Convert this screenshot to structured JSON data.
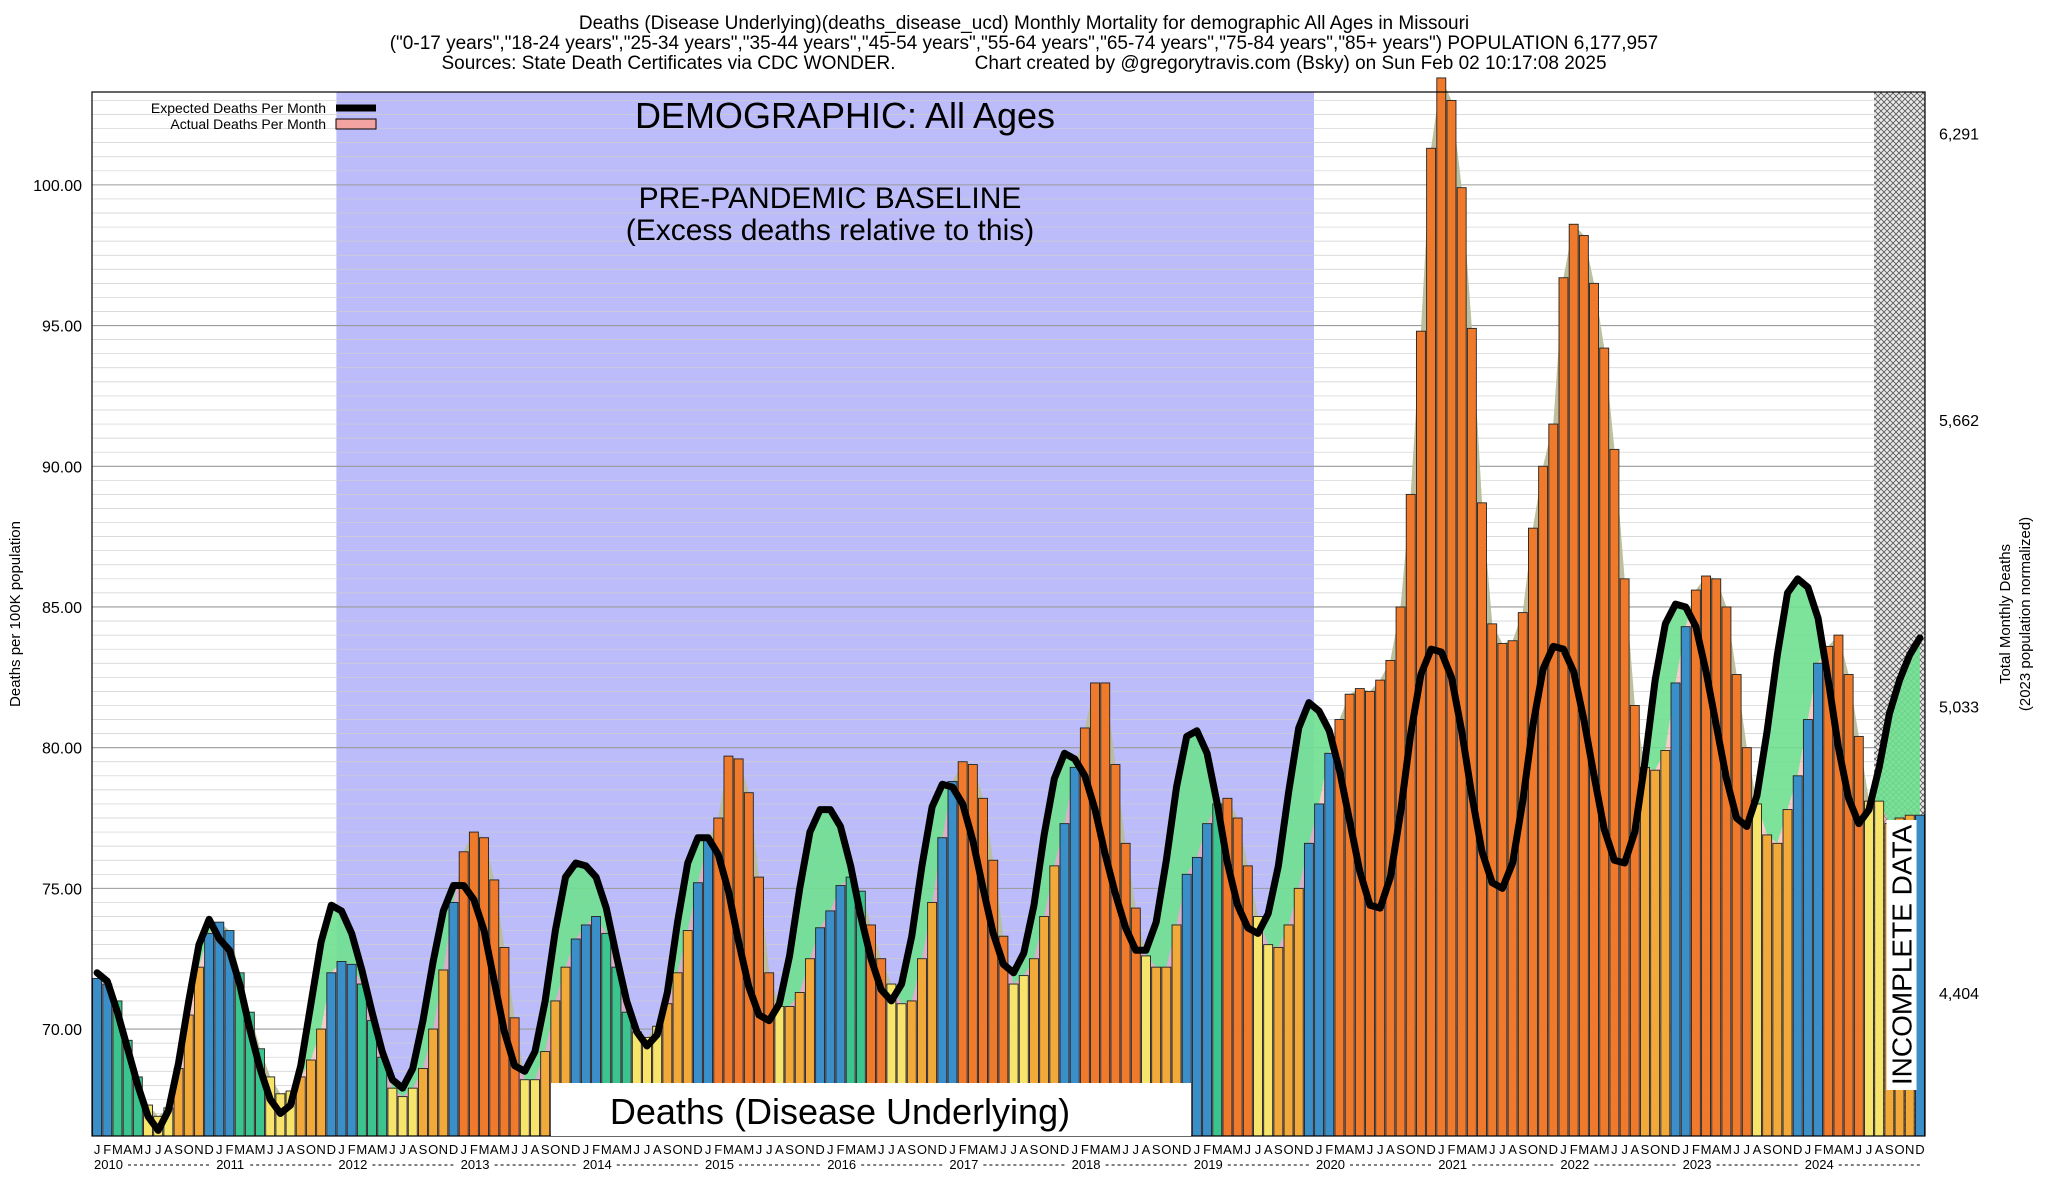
{
  "header": {
    "line1": "Deaths (Disease Underlying)(deaths_disease_ucd) Monthly Mortality for demographic All Ages in Missouri",
    "line2": "(\"0-17 years\",\"18-24 years\",\"25-34 years\",\"35-44 years\",\"45-54 years\",\"55-64 years\",\"65-74 years\",\"75-84 years\",\"85+ years\") POPULATION 6,177,957",
    "line3": "Sources: State Death Certificates via CDC WONDER.               Chart created by @gregorytravis.com (Bsky) on Sun Feb 02 10:17:08 2025"
  },
  "colors": {
    "baseline_region": "#bcbcfa",
    "expected_line": "#000000",
    "actual_band": "#f4a3a3",
    "excess_fill": "#6fe08f",
    "month_winter": "#3b8fc8",
    "month_spring": "#3cc48e",
    "month_summer": "#f6e56a",
    "month_fall": "#f1a93a",
    "above_expected": "#f07a2c"
  },
  "chart_data": {
    "type": "bar",
    "title": "Deaths (Disease Underlying)(deaths_disease_ucd) Monthly Mortality for demographic All Ages in Missouri",
    "ylabel_left": "Deaths per 100K population",
    "ylabel_right": [
      "Total Monthly Deaths",
      "(2023 population normalized)"
    ],
    "ylim": [
      66.2,
      103.3
    ],
    "y_ticks_left": [
      "70.00",
      "75.00",
      "80.00",
      "85.00",
      "90.00",
      "95.00",
      "100.00"
    ],
    "y_ticks_right": [
      {
        "label": "4,404",
        "value": 71.29
      },
      {
        "label": "5,033",
        "value": 81.47
      },
      {
        "label": "5,662",
        "value": 91.65
      },
      {
        "label": "6,291",
        "value": 101.83
      }
    ],
    "x_start": "2010-01",
    "month_letters": [
      "J",
      "F",
      "M",
      "A",
      "M",
      "J",
      "J",
      "A",
      "S",
      "O",
      "N",
      "D"
    ],
    "years": [
      "2010",
      "2011",
      "2012",
      "2013",
      "2014",
      "2015",
      "2016",
      "2017",
      "2018",
      "2019",
      "2020",
      "2021",
      "2022",
      "2023",
      "2024"
    ],
    "baseline_range": [
      "2012-01",
      "2019-12"
    ],
    "incomplete_range": [
      "2024-08",
      "2024-12"
    ],
    "legend": [
      {
        "label": "Expected Deaths Per Month",
        "type": "line"
      },
      {
        "label": "Actual Deaths Per Month",
        "type": "band"
      }
    ],
    "annotations": {
      "demographic": "DEMOGRAPHIC: All Ages",
      "baseline_line1": "PRE-PANDEMIC BASELINE",
      "baseline_line2": "(Excess deaths relative to this)",
      "bottom_label": "Deaths (Disease Underlying)",
      "incomplete": "INCOMPLETE DATA"
    },
    "series": [
      {
        "name": "Actual Deaths Per Month",
        "values": [
          71.8,
          71.6,
          71.0,
          69.6,
          68.3,
          67.3,
          66.9,
          67.2,
          68.6,
          70.5,
          72.2,
          73.4,
          73.8,
          73.5,
          72.0,
          70.6,
          69.3,
          68.3,
          67.7,
          67.8,
          68.3,
          68.9,
          70.0,
          72.0,
          72.4,
          72.3,
          71.6,
          70.3,
          69.0,
          67.9,
          67.6,
          67.9,
          68.6,
          70.0,
          72.1,
          74.5,
          76.3,
          77.0,
          76.8,
          75.3,
          72.9,
          70.4,
          68.2,
          68.2,
          69.2,
          71.0,
          72.2,
          73.2,
          73.7,
          74.0,
          73.4,
          72.2,
          70.6,
          69.9,
          69.7,
          70.1,
          70.9,
          72.0,
          73.5,
          75.2,
          76.7,
          77.5,
          79.7,
          79.6,
          78.4,
          75.4,
          72.0,
          70.8,
          70.8,
          71.3,
          72.5,
          73.6,
          74.2,
          75.1,
          75.4,
          74.9,
          73.7,
          72.5,
          71.6,
          70.9,
          71.0,
          72.5,
          74.5,
          76.8,
          78.8,
          79.5,
          79.4,
          78.2,
          76.0,
          73.3,
          71.6,
          71.9,
          72.5,
          74.0,
          75.8,
          77.3,
          79.3,
          80.7,
          82.3,
          82.3,
          79.4,
          76.6,
          74.3,
          72.6,
          72.2,
          72.2,
          73.7,
          75.5,
          76.1,
          77.3,
          78.0,
          78.2,
          77.5,
          75.8,
          74.0,
          73.0,
          72.9,
          73.7,
          75.0,
          76.6,
          78.0,
          79.8,
          81.0,
          81.9,
          82.1,
          82.0,
          82.4,
          83.1,
          85.0,
          89.0,
          94.8,
          101.3,
          103.8,
          103.0,
          99.9,
          94.9,
          88.7,
          84.4,
          83.7,
          83.8,
          84.8,
          87.8,
          90.0,
          91.5,
          96.7,
          98.6,
          98.2,
          96.5,
          94.2,
          90.6,
          86.0,
          81.5,
          79.3,
          79.2,
          79.9,
          82.3,
          84.3,
          85.6,
          86.1,
          86.0,
          85.0,
          82.6,
          80.0,
          78.0,
          76.9,
          76.6,
          77.8,
          79.0,
          81.0,
          83.0,
          83.6,
          84.0,
          82.6,
          80.4,
          78.1,
          78.1,
          77.3,
          77.5,
          77.6,
          77.6
        ]
      },
      {
        "name": "Expected Deaths Per Month",
        "values": [
          72.0,
          71.7,
          70.6,
          69.3,
          68.0,
          66.9,
          66.4,
          67.1,
          68.8,
          71.0,
          73.0,
          73.9,
          73.2,
          72.8,
          71.6,
          70.0,
          68.6,
          67.5,
          67.0,
          67.3,
          68.7,
          70.9,
          73.1,
          74.4,
          74.2,
          73.4,
          72.1,
          70.6,
          69.2,
          68.2,
          67.9,
          68.6,
          70.3,
          72.4,
          74.2,
          75.1,
          75.1,
          74.6,
          73.5,
          71.7,
          69.9,
          68.7,
          68.5,
          69.2,
          71.0,
          73.5,
          75.4,
          75.9,
          75.8,
          75.4,
          74.3,
          72.6,
          71.0,
          69.9,
          69.4,
          69.8,
          71.3,
          73.8,
          75.9,
          76.8,
          76.8,
          76.2,
          74.9,
          73.1,
          71.5,
          70.5,
          70.3,
          70.9,
          72.6,
          75.0,
          77.0,
          77.8,
          77.8,
          77.2,
          75.8,
          74.0,
          72.5,
          71.4,
          71.0,
          71.6,
          73.3,
          75.8,
          77.9,
          78.7,
          78.6,
          78.0,
          76.7,
          75.0,
          73.4,
          72.3,
          72.0,
          72.7,
          74.4,
          76.9,
          78.9,
          79.8,
          79.6,
          79.0,
          77.8,
          76.2,
          74.8,
          73.6,
          72.8,
          72.8,
          73.8,
          76.0,
          78.6,
          80.4,
          80.6,
          79.8,
          78.0,
          75.9,
          74.4,
          73.6,
          73.4,
          74.1,
          75.8,
          78.4,
          80.7,
          81.6,
          81.3,
          80.6,
          79.2,
          77.4,
          75.6,
          74.4,
          74.3,
          75.4,
          77.7,
          80.5,
          82.6,
          83.5,
          83.4,
          82.5,
          80.6,
          78.3,
          76.3,
          75.2,
          75.0,
          75.9,
          78.1,
          80.8,
          82.8,
          83.6,
          83.5,
          82.7,
          81.0,
          79.0,
          77.1,
          76.0,
          75.9,
          77.0,
          79.5,
          82.4,
          84.4,
          85.1,
          85.0,
          84.3,
          82.7,
          80.8,
          78.9,
          77.5,
          77.2,
          78.3,
          80.6,
          83.3,
          85.5,
          86.0,
          85.7,
          84.6,
          82.4,
          80.0,
          78.2,
          77.3,
          77.8,
          79.3,
          81.2,
          82.4,
          83.3,
          83.9
        ]
      }
    ]
  }
}
